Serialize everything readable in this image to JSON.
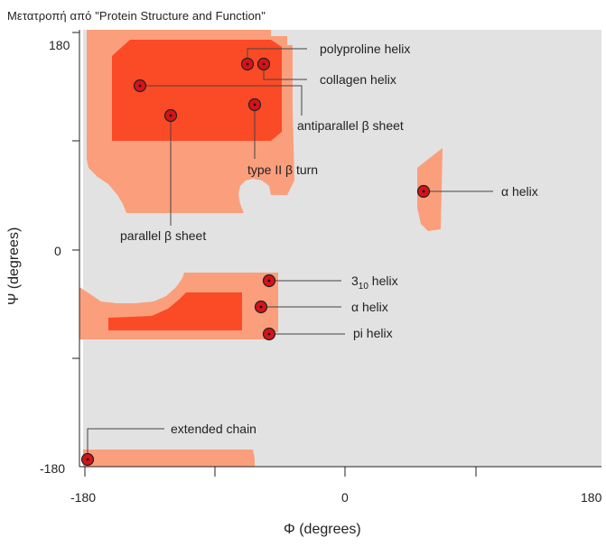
{
  "caption": "Μετατροπή από \"Protein Structure and Function\"",
  "axes": {
    "x_title": "Φ (degrees)",
    "y_title": "Ψ (degrees)",
    "x_ticks": [
      "-180",
      "0",
      "180"
    ],
    "y_ticks": [
      "180",
      "0",
      "-180"
    ],
    "x_range": [
      -180,
      180
    ],
    "y_range": [
      -180,
      180
    ]
  },
  "colors": {
    "background": "#e2e2e2",
    "allowed": "#fb9e7c",
    "favored": "#fb4a26",
    "marker": "#d4131b"
  },
  "labels": {
    "polyproline_helix": "polyproline helix",
    "collagen_helix": "collagen helix",
    "antiparallel_beta_sheet": "antiparallel β sheet",
    "type_ii_beta_turn": "type II β turn",
    "parallel_beta_sheet": "parallel β sheet",
    "alpha_helix_left": "α helix",
    "three_ten_helix_main": "3",
    "three_ten_helix_sub": "10",
    "three_ten_helix_tail": " helix",
    "alpha_helix_right": "α helix",
    "pi_helix": "pi helix",
    "extended_chain": "extended chain"
  }
}
